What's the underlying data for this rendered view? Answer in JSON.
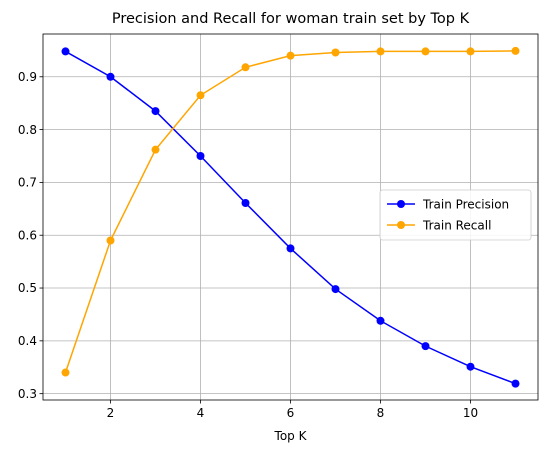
{
  "chart_data": {
    "type": "line",
    "title": "Precision and Recall for woman train set by Top K",
    "xlabel": "Top K",
    "ylabel": "",
    "x": [
      1,
      2,
      3,
      4,
      5,
      6,
      7,
      8,
      9,
      10,
      11
    ],
    "xlim": [
      0.5,
      11.5
    ],
    "ylim": [
      0.288,
      0.981
    ],
    "xticks": [
      2,
      4,
      6,
      8,
      10
    ],
    "yticks": [
      0.3,
      0.4,
      0.5,
      0.6,
      0.7,
      0.8,
      0.9
    ],
    "grid": true,
    "legend_position": "center-right",
    "series": [
      {
        "name": "Train Precision",
        "color": "#0000ff",
        "marker": "circle",
        "values": [
          0.948,
          0.9,
          0.835,
          0.75,
          0.661,
          0.575,
          0.498,
          0.438,
          0.39,
          0.351,
          0.319
        ]
      },
      {
        "name": "Train Recall",
        "color": "#ffa500",
        "marker": "circle",
        "values": [
          0.34,
          0.59,
          0.762,
          0.865,
          0.918,
          0.94,
          0.946,
          0.948,
          0.948,
          0.948,
          0.949
        ]
      }
    ]
  }
}
